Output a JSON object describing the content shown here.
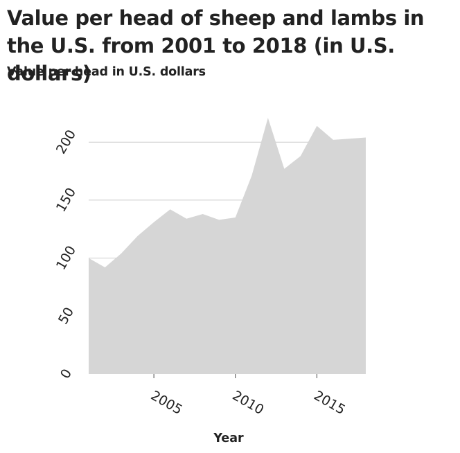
{
  "chart_data": {
    "type": "area",
    "title": "Value per head of sheep and lambs in the U.S. from 2001 to 2018 (in U.S. dollars)",
    "ylabel": "Value per head in U.S. dollars",
    "xlabel": "Year",
    "x": [
      2001,
      2002,
      2003,
      2004,
      2005,
      2006,
      2007,
      2008,
      2009,
      2010,
      2011,
      2012,
      2013,
      2014,
      2015,
      2016,
      2017,
      2018
    ],
    "y": [
      100,
      92,
      104,
      119,
      131,
      142,
      134,
      138,
      133,
      135,
      171,
      221,
      177,
      188,
      214,
      202,
      203,
      204
    ],
    "xlim": [
      2001,
      2018
    ],
    "ylim": [
      0,
      230
    ],
    "xticks": [
      2005,
      2010,
      2015
    ],
    "yticks": [
      0,
      50,
      100,
      150,
      200
    ],
    "grid": "horizontal",
    "fill_color": "#d6d6d6",
    "grid_color": "#cccccc"
  }
}
